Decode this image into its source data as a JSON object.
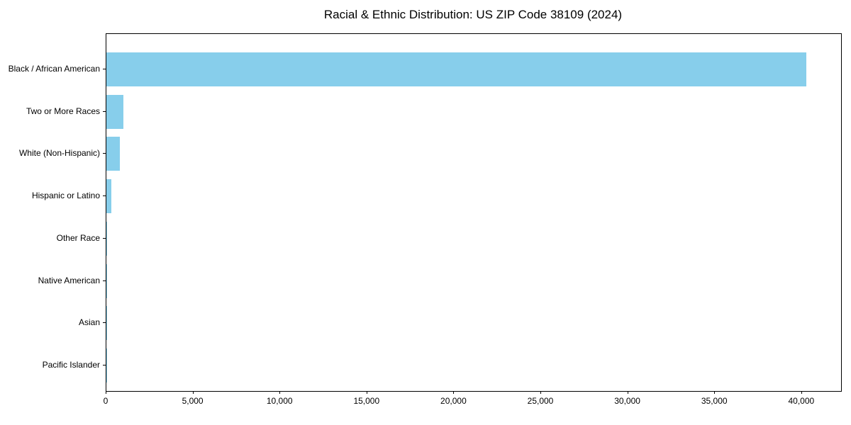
{
  "figure": {
    "background": "#ffffff",
    "frame_color": "#000000",
    "text_color": "#000000"
  },
  "chart_data": {
    "type": "bar",
    "orientation": "horizontal",
    "title": "Racial & Ethnic Distribution: US ZIP Code 38109 (2024)",
    "categories": [
      "Black / African American",
      "Two or More Races",
      "White (Non-Hispanic)",
      "Hispanic or Latino",
      "Other Race",
      "Native American",
      "Asian",
      "Pacific Islander"
    ],
    "values": [
      40260,
      960,
      755,
      305,
      40,
      15,
      10,
      5
    ],
    "xlabel": "",
    "ylabel": "",
    "xlim": [
      0,
      42250
    ],
    "xticks": [
      0,
      5000,
      10000,
      15000,
      20000,
      25000,
      30000,
      35000,
      40000
    ],
    "xtick_labels": [
      "0",
      "5,000",
      "10,000",
      "15,000",
      "20,000",
      "25,000",
      "30,000",
      "35,000",
      "40,000"
    ],
    "bar_color": "#87CEEB",
    "grid": false,
    "legend": null
  }
}
